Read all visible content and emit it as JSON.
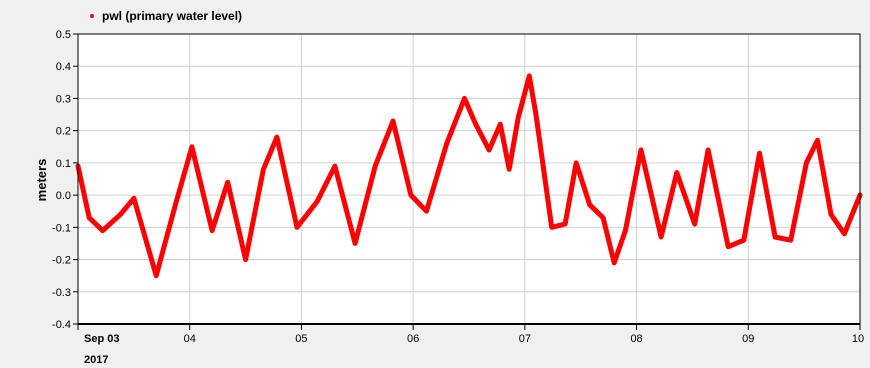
{
  "legend": {
    "label": "pwl (primary water level)"
  },
  "colors": {
    "series": "#ff0000",
    "plot_bg": "#ffffff",
    "page_bg": "#f0f0f0",
    "grid": "#d0d0d0"
  },
  "chart_data": {
    "type": "scatter",
    "title": "",
    "ylabel": "meters",
    "xlabel": "",
    "ylim": [
      -0.4,
      0.5
    ],
    "xlim": [
      3,
      10
    ],
    "grid": true,
    "legend_position": "top-left",
    "y_ticks": [
      "0.5",
      "0.4",
      "0.3",
      "0.2",
      "0.1",
      "0.0",
      "-0.1",
      "-0.2",
      "-0.3",
      "-0.4"
    ],
    "y_tick_values": [
      0.5,
      0.4,
      0.3,
      0.2,
      0.1,
      0.0,
      -0.1,
      -0.2,
      -0.3,
      -0.4
    ],
    "x_ticks": [
      "Sep 03",
      "04",
      "05",
      "06",
      "07",
      "08",
      "09",
      "10"
    ],
    "x_tick_values": [
      3,
      4,
      5,
      6,
      7,
      8,
      9,
      10
    ],
    "x_year_label": "2017",
    "series": [
      {
        "name": "pwl (primary water level)",
        "x": [
          3.0,
          3.1,
          3.22,
          3.38,
          3.5,
          3.7,
          3.88,
          4.02,
          4.2,
          4.34,
          4.5,
          4.66,
          4.78,
          4.96,
          5.14,
          5.3,
          5.48,
          5.66,
          5.82,
          5.98,
          6.12,
          6.3,
          6.46,
          6.56,
          6.68,
          6.78,
          6.86,
          6.94,
          7.04,
          7.1,
          7.24,
          7.36,
          7.46,
          7.58,
          7.7,
          7.8,
          7.9,
          8.04,
          8.22,
          8.36,
          8.52,
          8.64,
          8.82,
          8.96,
          9.1,
          9.24,
          9.38,
          9.52,
          9.62,
          9.74,
          9.86,
          10.0
        ],
        "y": [
          0.09,
          -0.07,
          -0.11,
          -0.06,
          -0.01,
          -0.25,
          -0.02,
          0.15,
          -0.11,
          0.04,
          -0.2,
          0.08,
          0.18,
          -0.1,
          -0.02,
          0.09,
          -0.15,
          0.09,
          0.23,
          0.0,
          -0.05,
          0.16,
          0.3,
          0.22,
          0.14,
          0.22,
          0.08,
          0.24,
          0.37,
          0.25,
          -0.1,
          -0.09,
          0.1,
          -0.03,
          -0.07,
          -0.21,
          -0.11,
          0.14,
          -0.13,
          0.07,
          -0.09,
          0.14,
          -0.16,
          -0.14,
          0.13,
          -0.13,
          -0.14,
          0.1,
          0.17,
          -0.06,
          -0.12,
          0.0
        ]
      }
    ]
  }
}
